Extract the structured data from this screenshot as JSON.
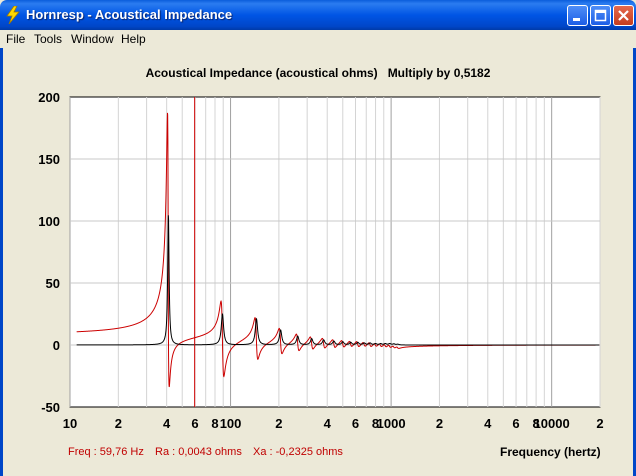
{
  "window": {
    "title": "Hornresp - Acoustical Impedance",
    "controls": [
      "minimize",
      "maximize",
      "close"
    ]
  },
  "menu": {
    "items": [
      "File",
      "Tools",
      "Window",
      "Help"
    ]
  },
  "chart": {
    "title_main": "Acoustical Impedance (acoustical ohms)",
    "title_multiplier": "Multiply by 0,5182",
    "xlabel": "Frequency (hertz)",
    "readout": {
      "freq": "Freq : 59,76 Hz",
      "ra": "Ra : 0,0043 ohms",
      "xa": "Xa : -0,2325 ohms"
    },
    "colors": {
      "ra": "#000000",
      "xa": "#cc0000",
      "cursor": "#cc0000",
      "grid": "#c8c8c8"
    }
  },
  "chart_data": {
    "type": "line",
    "title": "Acoustical Impedance (acoustical ohms)",
    "subtitle": "Multiply by 0,5182",
    "xlabel": "Frequency (hertz)",
    "ylabel": "",
    "x_scale": "log",
    "xlim": [
      10,
      20000
    ],
    "ylim": [
      -50,
      200
    ],
    "x_ticks": [
      "10",
      "2",
      "4",
      "6",
      "8",
      "100",
      "2",
      "4",
      "6",
      "8",
      "1000",
      "2",
      "4",
      "6",
      "8",
      "10000",
      "2"
    ],
    "y_ticks": [
      "200",
      "150",
      "100",
      "50",
      "0",
      "-50"
    ],
    "cursor_frequency": 59.76,
    "grid": true,
    "peaks": [
      {
        "freq": 41,
        "ra": 105,
        "xa_max": 182,
        "xa_min": -40
      },
      {
        "freq": 89,
        "ra": 25,
        "xa_max": 31,
        "xa_min": -30
      },
      {
        "freq": 145,
        "ra": 21,
        "xa_max": 20,
        "xa_min": -14
      },
      {
        "freq": 205,
        "ra": 12,
        "xa_max": 12,
        "xa_min": -9
      },
      {
        "freq": 262,
        "ra": 7,
        "xa_max": 8,
        "xa_min": -6
      },
      {
        "freq": 320,
        "ra": 5,
        "xa_max": 6,
        "xa_min": -4.5
      },
      {
        "freq": 380,
        "ra": 4,
        "xa_max": 5,
        "xa_min": -3.5
      },
      {
        "freq": 440,
        "ra": 3,
        "xa_max": 4,
        "xa_min": -3
      },
      {
        "freq": 500,
        "ra": 2.5,
        "xa_max": 3.5,
        "xa_min": -2.5
      },
      {
        "freq": 560,
        "ra": 2,
        "xa_max": 3,
        "xa_min": -2
      },
      {
        "freq": 620,
        "ra": 2,
        "xa_max": 3,
        "xa_min": -2
      },
      {
        "freq": 680,
        "ra": 1.5,
        "xa_max": 2.5,
        "xa_min": -1.5
      },
      {
        "freq": 740,
        "ra": 1.5,
        "xa_max": 2.5,
        "xa_min": -1.5
      },
      {
        "freq": 800,
        "ra": 1,
        "xa_max": 2,
        "xa_min": -1
      },
      {
        "freq": 860,
        "ra": 1,
        "xa_max": 2,
        "xa_min": -1
      },
      {
        "freq": 920,
        "ra": 1,
        "xa_max": 1.5,
        "xa_min": -1
      },
      {
        "freq": 980,
        "ra": 1,
        "xa_max": 1.5,
        "xa_min": -1
      },
      {
        "freq": 1040,
        "ra": 0.8,
        "xa_max": 1.2,
        "xa_min": -0.8
      },
      {
        "freq": 1100,
        "ra": 0.6,
        "xa_max": 1,
        "xa_min": -0.6
      }
    ]
  }
}
